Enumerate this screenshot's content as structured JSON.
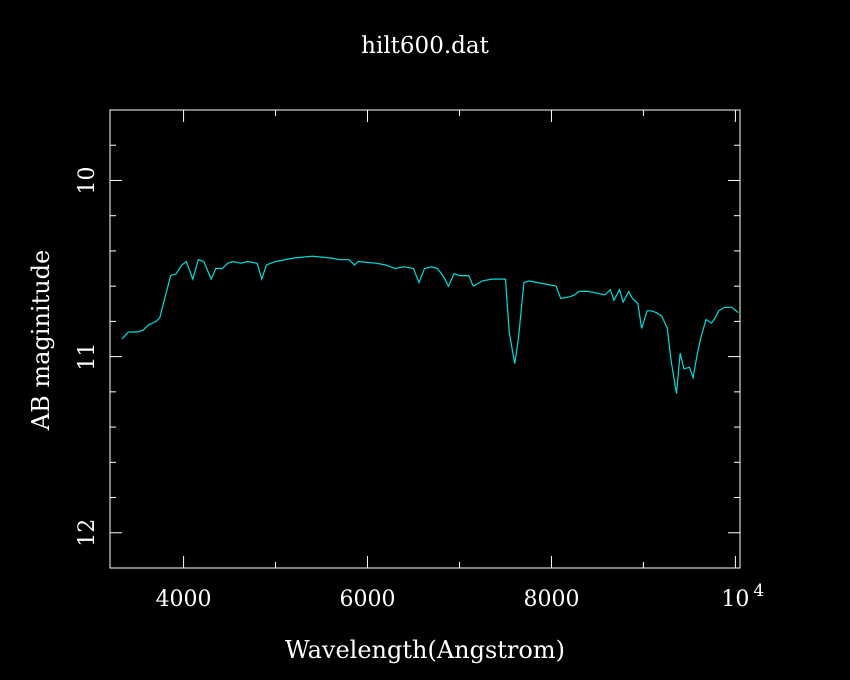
{
  "chart_data": {
    "type": "line",
    "title": "hilt600.dat",
    "xlabel": "Wavelength(Angstrom)",
    "ylabel": "AB maginitude",
    "xlim": [
      3200,
      10050
    ],
    "ylim": [
      12.2,
      9.6
    ],
    "y_inverted": true,
    "grid": false,
    "x_major_ticks": [
      4000,
      6000,
      8000,
      10000
    ],
    "x_tick_labels": [
      "4000",
      "6000",
      "8000",
      "10"
    ],
    "x_last_tick_exponent": "4",
    "x_minor_step": 1000,
    "y_major_ticks": [
      10,
      11,
      12
    ],
    "y_tick_labels": [
      "10",
      "11",
      "12"
    ],
    "y_minor_step": 0.2,
    "colors": {
      "background": "#000000",
      "axes": "#ffffff",
      "series": "#00dcdc"
    },
    "series": [
      {
        "x": [
          3330,
          3400,
          3500,
          3560,
          3620,
          3700,
          3740,
          3800,
          3860,
          3920,
          3980,
          4030,
          4100,
          4160,
          4220,
          4300,
          4350,
          4420,
          4480,
          4540,
          4620,
          4700,
          4800,
          4850,
          4900,
          5000,
          5200,
          5400,
          5600,
          5700,
          5800,
          5860,
          5900,
          6100,
          6200,
          6300,
          6400,
          6500,
          6560,
          6620,
          6700,
          6760,
          6820,
          6880,
          6940,
          7000,
          7100,
          7150,
          7250,
          7350,
          7450,
          7500,
          7540,
          7600,
          7640,
          7700,
          7760,
          7850,
          7950,
          8050,
          8100,
          8200,
          8250,
          8300,
          8400,
          8500,
          8580,
          8640,
          8680,
          8740,
          8780,
          8840,
          8880,
          8940,
          8980,
          9040,
          9080,
          9140,
          9200,
          9260,
          9300,
          9360,
          9400,
          9440,
          9500,
          9540,
          9580,
          9620,
          9680,
          9740,
          9780,
          9820,
          9880,
          9960,
          10030
        ],
        "y": [
          10.9,
          10.86,
          10.86,
          10.85,
          10.82,
          10.8,
          10.78,
          10.66,
          10.54,
          10.53,
          10.48,
          10.46,
          10.56,
          10.45,
          10.46,
          10.56,
          10.5,
          10.5,
          10.47,
          10.46,
          10.47,
          10.46,
          10.47,
          10.56,
          10.48,
          10.46,
          10.44,
          10.43,
          10.44,
          10.45,
          10.45,
          10.48,
          10.46,
          10.47,
          10.48,
          10.5,
          10.49,
          10.5,
          10.58,
          10.5,
          10.49,
          10.5,
          10.54,
          10.6,
          10.53,
          10.54,
          10.54,
          10.6,
          10.57,
          10.56,
          10.56,
          10.56,
          10.86,
          11.04,
          10.9,
          10.58,
          10.57,
          10.58,
          10.59,
          10.6,
          10.67,
          10.66,
          10.65,
          10.63,
          10.63,
          10.64,
          10.65,
          10.62,
          10.68,
          10.62,
          10.69,
          10.63,
          10.67,
          10.7,
          10.84,
          10.74,
          10.74,
          10.75,
          10.77,
          10.84,
          11.02,
          11.21,
          10.98,
          11.07,
          11.06,
          11.12,
          11.0,
          10.9,
          10.79,
          10.81,
          10.78,
          10.74,
          10.72,
          10.72,
          10.75
        ]
      }
    ]
  }
}
